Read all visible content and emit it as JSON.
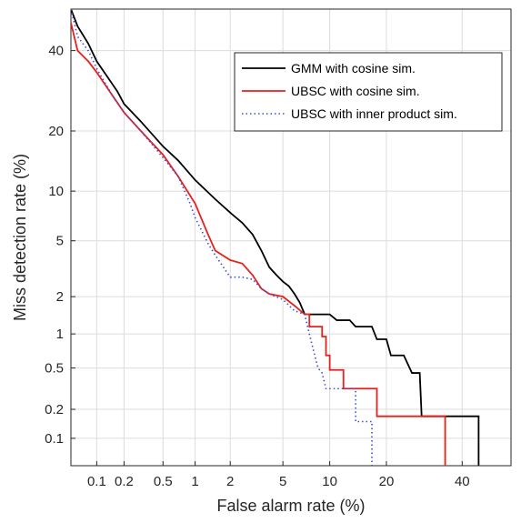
{
  "chart_data": {
    "type": "line",
    "xlabel": "False alarm rate (%)",
    "ylabel": "Miss detection rate (%)",
    "scale": "normal-deviate (DET)",
    "xlim": [
      0.05,
      55
    ],
    "ylim": [
      0.05,
      52
    ],
    "x_ticks": [
      0.1,
      0.2,
      0.5,
      1,
      2,
      5,
      10,
      20,
      40
    ],
    "x_tick_labels": [
      "0.1",
      "0.2",
      "0.5",
      "1",
      "2",
      "5",
      "10",
      "20",
      "40"
    ],
    "y_ticks": [
      0.1,
      0.2,
      0.5,
      1,
      2,
      5,
      10,
      20,
      40
    ],
    "y_tick_labels": [
      "0.1",
      "0.2",
      "0.5",
      "1",
      "2",
      "5",
      "10",
      "20",
      "40"
    ],
    "grid": true,
    "legend_position": "top-right",
    "series": [
      {
        "name": "GMM with cosine sim.",
        "color": "#000000",
        "dash": "solid",
        "points": [
          [
            0.05,
            52
          ],
          [
            0.06,
            47
          ],
          [
            0.08,
            42
          ],
          [
            0.1,
            37
          ],
          [
            0.13,
            33
          ],
          [
            0.17,
            29
          ],
          [
            0.2,
            26
          ],
          [
            0.3,
            22
          ],
          [
            0.5,
            17
          ],
          [
            0.7,
            14.5
          ],
          [
            1,
            11.5
          ],
          [
            1.5,
            9
          ],
          [
            2,
            7.5
          ],
          [
            2.5,
            6.5
          ],
          [
            3,
            5.5
          ],
          [
            3.5,
            4.3
          ],
          [
            4,
            3.3
          ],
          [
            4.5,
            2.9
          ],
          [
            5,
            2.6
          ],
          [
            5.5,
            2.4
          ],
          [
            6,
            2.1
          ],
          [
            6.5,
            1.8
          ],
          [
            7,
            1.45
          ],
          [
            8,
            1.45
          ],
          [
            10,
            1.45
          ],
          [
            11,
            1.3
          ],
          [
            13,
            1.3
          ],
          [
            14,
            1.15
          ],
          [
            17,
            1.15
          ],
          [
            18,
            0.9
          ],
          [
            20,
            0.9
          ],
          [
            21,
            0.65
          ],
          [
            24,
            0.65
          ],
          [
            26,
            0.45
          ],
          [
            28,
            0.45
          ],
          [
            28.5,
            0.17
          ],
          [
            45,
            0.17
          ],
          [
            45,
            0.05
          ]
        ]
      },
      {
        "name": "UBSC with cosine sim.",
        "color": "#e8201c",
        "dash": "solid",
        "points": [
          [
            0.05,
            48
          ],
          [
            0.06,
            40
          ],
          [
            0.08,
            37
          ],
          [
            0.1,
            34
          ],
          [
            0.15,
            28
          ],
          [
            0.2,
            24
          ],
          [
            0.3,
            20
          ],
          [
            0.5,
            15.5
          ],
          [
            0.7,
            12
          ],
          [
            1,
            8.5
          ],
          [
            1.3,
            5.5
          ],
          [
            1.5,
            4.3
          ],
          [
            2,
            3.7
          ],
          [
            2.5,
            3.5
          ],
          [
            3,
            2.9
          ],
          [
            3.5,
            2.3
          ],
          [
            4,
            2.1
          ],
          [
            5,
            2
          ],
          [
            6,
            1.7
          ],
          [
            7,
            1.45
          ],
          [
            7.5,
            1.45
          ],
          [
            7.5,
            1.15
          ],
          [
            9,
            1.15
          ],
          [
            9,
            0.95
          ],
          [
            9.5,
            0.95
          ],
          [
            9.5,
            0.65
          ],
          [
            10,
            0.65
          ],
          [
            10,
            0.48
          ],
          [
            12,
            0.48
          ],
          [
            12,
            0.32
          ],
          [
            18,
            0.32
          ],
          [
            18,
            0.17
          ],
          [
            35,
            0.17
          ],
          [
            35,
            0.05
          ]
        ]
      },
      {
        "name": "UBSC with inner product sim.",
        "color": "#3a4fd1",
        "dash": "dotted",
        "points": [
          [
            0.05,
            52
          ],
          [
            0.06,
            44
          ],
          [
            0.08,
            40
          ],
          [
            0.1,
            35
          ],
          [
            0.15,
            28
          ],
          [
            0.2,
            24
          ],
          [
            0.3,
            20
          ],
          [
            0.5,
            15
          ],
          [
            0.7,
            12
          ],
          [
            0.9,
            8.5
          ],
          [
            1,
            7
          ],
          [
            1.3,
            4.8
          ],
          [
            1.5,
            4
          ],
          [
            1.8,
            3.2
          ],
          [
            2,
            2.8
          ],
          [
            2.5,
            2.8
          ],
          [
            3,
            2.7
          ],
          [
            3.5,
            2.3
          ],
          [
            4,
            2.1
          ],
          [
            5,
            1.9
          ],
          [
            6,
            1.55
          ],
          [
            7,
            1.45
          ],
          [
            7.5,
            1
          ],
          [
            8,
            0.7
          ],
          [
            8.5,
            0.5
          ],
          [
            9,
            0.45
          ],
          [
            9.5,
            0.32
          ],
          [
            14,
            0.32
          ],
          [
            14,
            0.15
          ],
          [
            17,
            0.15
          ],
          [
            17,
            0.05
          ]
        ]
      }
    ]
  }
}
